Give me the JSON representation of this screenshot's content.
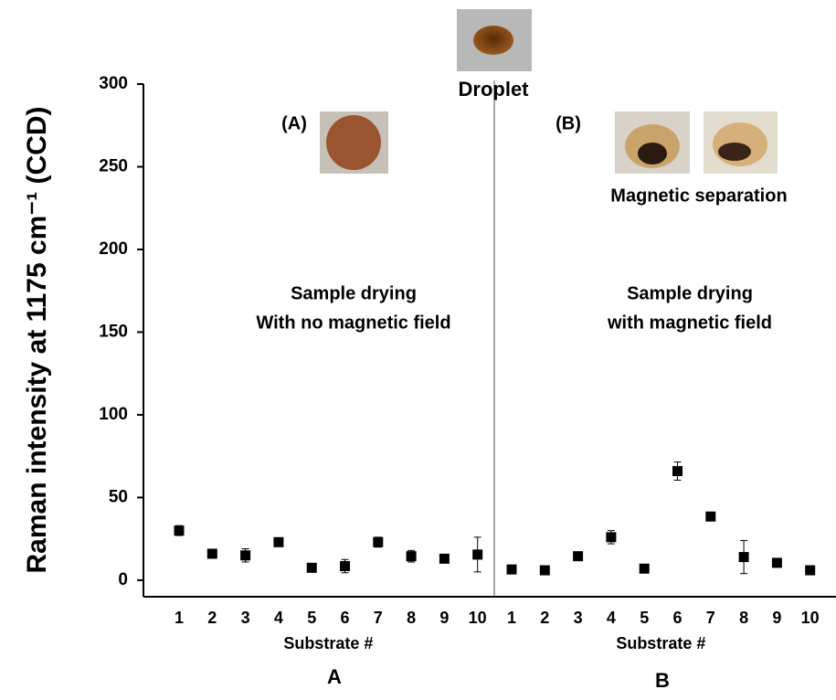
{
  "chart_data": [
    {
      "type": "scatter",
      "label": "A",
      "xlabel": "Substrate #",
      "ylabel": "Raman intensity at 1175 cm⁻¹ (CCD)",
      "categories": [
        "1",
        "2",
        "3",
        "4",
        "5",
        "6",
        "7",
        "8",
        "9",
        "10"
      ],
      "values": [
        30,
        16,
        15,
        23,
        7.5,
        8.5,
        23,
        14.5,
        13,
        15.5
      ],
      "errors": [
        3,
        1.5,
        4,
        2.5,
        1,
        4,
        3,
        3.5,
        1.5,
        10.5
      ],
      "color": "#000000",
      "ylim": [
        -10,
        300
      ],
      "yticks": [
        0,
        50,
        100,
        150,
        200,
        250,
        300
      ],
      "annotations": [
        "(A)",
        "Sample drying",
        "With no magnetic field"
      ]
    },
    {
      "type": "scatter",
      "label": "B",
      "xlabel": "Substrate #",
      "categories": [
        "1",
        "2",
        "3",
        "4",
        "5",
        "6",
        "7",
        "8",
        "9",
        "10"
      ],
      "values": [
        6.5,
        6,
        14.5,
        26,
        7,
        66,
        38.5,
        14,
        10.5,
        6
      ],
      "errors": [
        1,
        1,
        1.5,
        4,
        1,
        5.5,
        1,
        10,
        1,
        1
      ],
      "color": "#000000",
      "ylim": [
        -10,
        300
      ],
      "annotations": [
        "(B)",
        "Magnetic separation",
        "Sample drying",
        "with magnetic field"
      ]
    }
  ],
  "caption": "Droplet"
}
